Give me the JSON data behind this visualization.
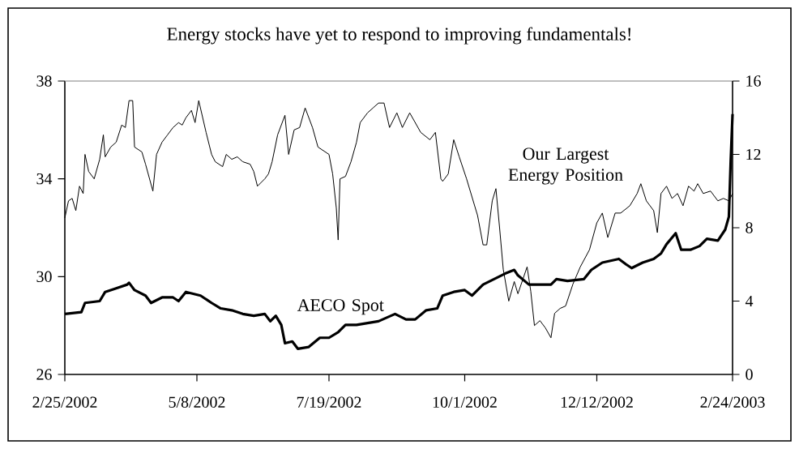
{
  "chart_data": {
    "type": "line",
    "title": "Energy stocks have yet to respond to improving fundamentals!",
    "xlim": [
      "2002-02-25",
      "2003-02-24"
    ],
    "xticks": [
      {
        "value": "2002-02-25",
        "label": "2/25/2002"
      },
      {
        "value": "2002-05-08",
        "label": "5/8/2002"
      },
      {
        "value": "2002-07-19",
        "label": "7/19/2002"
      },
      {
        "value": "2002-10-01",
        "label": "10/1/2002"
      },
      {
        "value": "2002-12-12",
        "label": "12/12/2002"
      },
      {
        "value": "2003-02-24",
        "label": "2/24/2003"
      }
    ],
    "ylim": [
      26,
      38
    ],
    "yticks": [
      26,
      30,
      34,
      38
    ],
    "y2lim": [
      0,
      16
    ],
    "y2ticks": [
      0,
      4,
      8,
      12,
      16
    ],
    "series": [
      {
        "name": "Our Largest Energy Position",
        "color": "#000000",
        "x": [
          "2002-02-25",
          "2002-02-27",
          "2002-03-01",
          "2002-03-03",
          "2002-03-05",
          "2002-03-07",
          "2002-03-08",
          "2002-03-10",
          "2002-03-13",
          "2002-03-16",
          "2002-03-18",
          "2002-03-19",
          "2002-03-22",
          "2002-03-25",
          "2002-03-28",
          "2002-03-30",
          "2002-04-01",
          "2002-04-03",
          "2002-04-04",
          "2002-04-08",
          "2002-04-10",
          "2002-04-14",
          "2002-04-16",
          "2002-04-19",
          "2002-04-22",
          "2002-04-25",
          "2002-04-28",
          "2002-04-30",
          "2002-05-02",
          "2002-05-05",
          "2002-05-07",
          "2002-05-09",
          "2002-05-13",
          "2002-05-16",
          "2002-05-18",
          "2002-05-22",
          "2002-05-24",
          "2002-05-27",
          "2002-05-30",
          "2002-06-02",
          "2002-06-06",
          "2002-06-08",
          "2002-06-10",
          "2002-06-14",
          "2002-06-16",
          "2002-06-18",
          "2002-06-21",
          "2002-06-25",
          "2002-06-27",
          "2002-06-30",
          "2002-07-03",
          "2002-07-06",
          "2002-07-10",
          "2002-07-13",
          "2002-07-19",
          "2002-07-21",
          "2002-07-23",
          "2002-07-24",
          "2002-07-25",
          "2002-07-28",
          "2002-07-31",
          "2002-08-03",
          "2002-08-05",
          "2002-08-09",
          "2002-08-12",
          "2002-08-15",
          "2002-08-18",
          "2002-08-21",
          "2002-08-25",
          "2002-08-28",
          "2002-09-01",
          "2002-09-07",
          "2002-09-12",
          "2002-09-15",
          "2002-09-18",
          "2002-09-19",
          "2002-09-22",
          "2002-09-25",
          "2002-09-28",
          "2002-10-02",
          "2002-10-08",
          "2002-10-11",
          "2002-10-13",
          "2002-10-16",
          "2002-10-18",
          "2002-10-20",
          "2002-10-22",
          "2002-10-25",
          "2002-10-28",
          "2002-10-30",
          "2002-11-04",
          "2002-11-06",
          "2002-11-08",
          "2002-11-11",
          "2002-11-14",
          "2002-11-17",
          "2002-11-19",
          "2002-11-22",
          "2002-11-25",
          "2002-11-29",
          "2002-12-03",
          "2002-12-08",
          "2002-12-12",
          "2002-12-15",
          "2002-12-18",
          "2002-12-22",
          "2002-12-25",
          "2002-12-30",
          "2003-01-03",
          "2003-01-05",
          "2003-01-08",
          "2003-01-12",
          "2003-01-14",
          "2003-01-16",
          "2003-01-19",
          "2003-01-22",
          "2003-01-25",
          "2003-01-28",
          "2003-01-31",
          "2003-02-03",
          "2003-02-05",
          "2003-02-08",
          "2003-02-12",
          "2003-02-16",
          "2003-02-19",
          "2003-02-22",
          "2003-02-24"
        ],
        "values": [
          32.4,
          33.1,
          33.2,
          32.7,
          33.7,
          33.4,
          35.0,
          34.3,
          34.0,
          34.8,
          35.8,
          34.9,
          35.3,
          35.5,
          36.2,
          36.1,
          37.2,
          37.2,
          35.3,
          35.1,
          34.6,
          33.5,
          35.0,
          35.5,
          35.8,
          36.1,
          36.3,
          36.2,
          36.5,
          36.8,
          36.3,
          37.2,
          35.9,
          35.0,
          34.7,
          34.5,
          35.0,
          34.8,
          34.9,
          34.7,
          34.6,
          34.3,
          33.7,
          34.0,
          34.2,
          34.7,
          35.8,
          36.6,
          35.0,
          36.0,
          36.1,
          36.9,
          36.1,
          35.3,
          35.0,
          34.2,
          32.8,
          31.5,
          34.0,
          34.1,
          34.7,
          35.5,
          36.3,
          36.7,
          36.9,
          37.1,
          37.1,
          36.1,
          36.7,
          36.1,
          36.7,
          35.9,
          35.6,
          35.9,
          34.0,
          33.9,
          34.2,
          35.6,
          34.9,
          34.0,
          32.5,
          31.3,
          31.3,
          33.1,
          33.6,
          32.0,
          30.3,
          29.0,
          29.8,
          29.3,
          30.4,
          29.4,
          28.0,
          28.2,
          27.9,
          27.5,
          28.5,
          28.7,
          28.8,
          29.7,
          30.4,
          31.1,
          32.2,
          32.6,
          31.6,
          32.6,
          32.6,
          32.9,
          33.4,
          33.8,
          33.1,
          32.7,
          31.8,
          33.4,
          33.7,
          33.2,
          33.4,
          32.9,
          33.7,
          33.5,
          33.8,
          33.4,
          33.5,
          33.1,
          33.2,
          33.1,
          33.4
        ]
      },
      {
        "name": "AECO Spot",
        "color": "#000000",
        "axis": "y2",
        "x": [
          "2002-02-25",
          "2002-03-06",
          "2002-03-08",
          "2002-03-16",
          "2002-03-19",
          "2002-03-25",
          "2002-03-31",
          "2002-04-01",
          "2002-04-04",
          "2002-04-10",
          "2002-04-13",
          "2002-04-19",
          "2002-04-25",
          "2002-04-28",
          "2002-05-02",
          "2002-05-10",
          "2002-05-16",
          "2002-05-21",
          "2002-05-27",
          "2002-06-02",
          "2002-06-08",
          "2002-06-14",
          "2002-06-17",
          "2002-06-20",
          "2002-06-23",
          "2002-06-25",
          "2002-06-29",
          "2002-07-02",
          "2002-07-08",
          "2002-07-14",
          "2002-07-19",
          "2002-07-24",
          "2002-07-28",
          "2002-08-03",
          "2002-08-15",
          "2002-08-24",
          "2002-08-30",
          "2002-09-04",
          "2002-09-10",
          "2002-09-16",
          "2002-09-19",
          "2002-09-25",
          "2002-10-01",
          "2002-10-05",
          "2002-10-11",
          "2002-10-17",
          "2002-10-23",
          "2002-10-28",
          "2002-10-30",
          "2002-11-05",
          "2002-11-17",
          "2002-11-20",
          "2002-11-26",
          "2002-12-05",
          "2002-12-09",
          "2002-12-15",
          "2002-12-24",
          "2002-12-28",
          "2002-12-31",
          "2003-01-06",
          "2003-01-12",
          "2003-01-16",
          "2003-01-19",
          "2003-01-24",
          "2003-01-27",
          "2003-02-01",
          "2003-02-06",
          "2003-02-10",
          "2003-02-16",
          "2003-02-20",
          "2003-02-22",
          "2003-02-23",
          "2003-02-24"
        ],
        "values": [
          3.3,
          3.4,
          3.9,
          4.0,
          4.5,
          4.7,
          4.9,
          5.0,
          4.6,
          4.3,
          3.9,
          4.2,
          4.2,
          4.0,
          4.5,
          4.3,
          3.9,
          3.6,
          3.5,
          3.3,
          3.2,
          3.3,
          2.9,
          3.2,
          2.7,
          1.7,
          1.8,
          1.4,
          1.5,
          2.0,
          2.0,
          2.3,
          2.7,
          2.7,
          2.9,
          3.3,
          3.0,
          3.0,
          3.5,
          3.6,
          4.3,
          4.5,
          4.6,
          4.3,
          4.9,
          5.2,
          5.5,
          5.7,
          5.4,
          4.9,
          4.9,
          5.2,
          5.1,
          5.2,
          5.7,
          6.1,
          6.3,
          6.0,
          5.8,
          6.1,
          6.3,
          6.6,
          7.1,
          7.7,
          6.8,
          6.8,
          7.0,
          7.4,
          7.3,
          7.9,
          8.6,
          11.7,
          14.2
        ]
      }
    ]
  }
}
